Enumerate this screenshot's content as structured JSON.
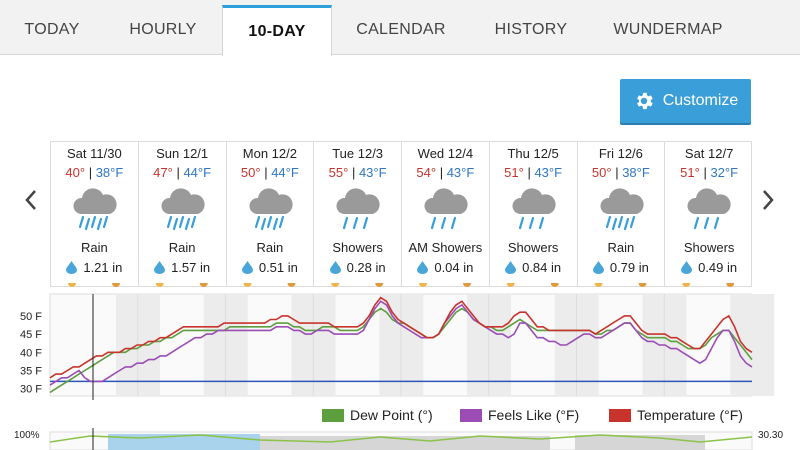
{
  "tabs": [
    {
      "label": "TODAY"
    },
    {
      "label": "HOURLY"
    },
    {
      "label": "10-DAY"
    },
    {
      "label": "CALENDAR"
    },
    {
      "label": "HISTORY"
    },
    {
      "label": "WUNDERMAP"
    }
  ],
  "active_tab": "10-DAY",
  "customize_label": "Customize",
  "days": [
    {
      "date": "Sat 11/30",
      "hi": "40°",
      "lo": "38°F",
      "cond": "Rain",
      "precip": "1.21 in"
    },
    {
      "date": "Sun 12/1",
      "hi": "47°",
      "lo": "44°F",
      "cond": "Rain",
      "precip": "1.57 in"
    },
    {
      "date": "Mon 12/2",
      "hi": "50°",
      "lo": "44°F",
      "cond": "Rain",
      "precip": "0.51 in"
    },
    {
      "date": "Tue 12/3",
      "hi": "55°",
      "lo": "43°F",
      "cond": "Showers",
      "precip": "0.28 in"
    },
    {
      "date": "Wed 12/4",
      "hi": "54°",
      "lo": "43°F",
      "cond": "AM Showers",
      "precip": "0.04 in"
    },
    {
      "date": "Thu 12/5",
      "hi": "51°",
      "lo": "43°F",
      "cond": "Showers",
      "precip": "0.84 in"
    },
    {
      "date": "Fri 12/6",
      "hi": "50°",
      "lo": "38°F",
      "cond": "Rain",
      "precip": "0.79 in"
    },
    {
      "date": "Sat 12/7",
      "hi": "51°",
      "lo": "32°F",
      "cond": "Showers",
      "precip": "0.49 in"
    }
  ],
  "chart_data": {
    "type": "line",
    "ytick_labels": [
      "50 F",
      "45 F",
      "40 F",
      "35 F",
      "30 F"
    ],
    "ylim": [
      28,
      56
    ],
    "freezing_line": 32,
    "series": [
      {
        "name": "Temperature (°F)",
        "color": "#c8342c",
        "values": [
          33,
          34,
          34,
          35,
          36,
          36,
          37,
          38,
          39,
          39,
          40,
          40,
          40,
          41,
          41,
          42,
          42,
          43,
          43,
          44,
          44,
          45,
          46,
          47,
          47,
          47,
          47,
          47,
          47,
          47,
          48,
          48,
          48,
          48,
          48,
          48,
          48,
          48,
          49,
          49,
          50,
          50,
          49,
          48,
          48,
          48,
          48,
          48,
          48,
          47,
          47,
          47,
          47,
          47,
          48,
          50,
          53,
          55,
          54,
          51,
          49,
          48,
          47,
          46,
          45,
          44,
          44,
          45,
          48,
          51,
          53,
          54,
          52,
          50,
          48,
          47,
          47,
          47,
          47,
          48,
          50,
          51,
          51,
          49,
          47,
          47,
          46,
          46,
          46,
          46,
          46,
          46,
          46,
          46,
          45,
          46,
          47,
          48,
          49,
          50,
          50,
          48,
          46,
          45,
          45,
          45,
          45,
          44,
          44,
          43,
          42,
          41,
          41,
          43,
          45,
          47,
          49,
          50,
          47,
          43,
          41,
          40
        ]
      },
      {
        "name": "Dew Point (°)",
        "color": "#5d9e3e",
        "values": [
          29,
          30,
          31,
          32,
          33,
          34,
          35,
          36,
          37,
          38,
          39,
          40,
          40,
          40,
          41,
          41,
          42,
          42,
          43,
          43,
          44,
          44,
          45,
          46,
          46,
          46,
          46,
          46,
          46,
          46,
          46,
          47,
          47,
          47,
          47,
          47,
          47,
          47,
          47,
          48,
          48,
          48,
          47,
          47,
          46,
          46,
          46,
          47,
          47,
          47,
          46,
          46,
          46,
          46,
          47,
          49,
          51,
          52,
          51,
          49,
          48,
          48,
          47,
          46,
          45,
          44,
          44,
          45,
          47,
          49,
          51,
          52,
          51,
          49,
          48,
          47,
          47,
          46,
          46,
          47,
          48,
          49,
          48,
          47,
          46,
          46,
          46,
          46,
          46,
          46,
          46,
          46,
          46,
          46,
          45,
          45,
          46,
          46,
          47,
          48,
          48,
          46,
          45,
          44,
          44,
          44,
          44,
          43,
          43,
          42,
          41,
          41,
          41,
          42,
          44,
          45,
          46,
          46,
          44,
          42,
          40,
          38
        ]
      },
      {
        "name": "Feels Like (°F)",
        "color": "#9b4db5",
        "values": [
          31,
          32,
          33,
          33,
          34,
          35,
          33,
          32,
          32,
          32,
          33,
          34,
          35,
          36,
          36,
          37,
          37,
          38,
          38,
          39,
          39,
          40,
          41,
          42,
          43,
          44,
          44,
          45,
          45,
          46,
          46,
          46,
          46,
          46,
          46,
          46,
          46,
          46,
          46,
          47,
          47,
          47,
          46,
          46,
          45,
          45,
          46,
          46,
          46,
          45,
          45,
          45,
          45,
          45,
          46,
          49,
          52,
          54,
          53,
          50,
          48,
          47,
          46,
          45,
          44,
          44,
          44,
          45,
          48,
          50,
          52,
          53,
          51,
          49,
          48,
          47,
          46,
          45,
          45,
          44,
          45,
          48,
          48,
          46,
          44,
          44,
          43,
          43,
          42,
          42,
          43,
          44,
          45,
          45,
          44,
          44,
          45,
          46,
          47,
          48,
          48,
          46,
          44,
          43,
          43,
          42,
          42,
          41,
          41,
          40,
          39,
          38,
          37,
          38,
          41,
          44,
          46,
          46,
          43,
          39,
          37,
          36
        ]
      }
    ],
    "bottom_chart": {
      "ytick_label": "100%",
      "right_label": "30.30"
    }
  },
  "legend": [
    {
      "label": "Dew Point (°)",
      "color": "#5d9e3e"
    },
    {
      "label": "Feels Like (°F)",
      "color": "#9b4db5"
    },
    {
      "label": "Temperature (°F)",
      "color": "#c8342c"
    }
  ]
}
